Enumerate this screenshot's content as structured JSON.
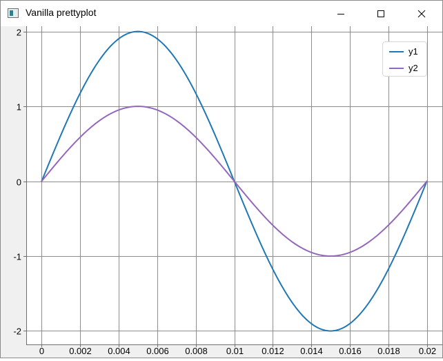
{
  "window": {
    "title": "Vanilla prettyplot",
    "controls": {
      "minimize_icon": "minimize-icon",
      "maximize_icon": "maximize-icon",
      "close_icon": "close-icon"
    }
  },
  "chart_data": {
    "type": "line",
    "title": "",
    "xlabel": "",
    "ylabel": "",
    "xlim": [
      -0.0008,
      0.0208
    ],
    "ylim": [
      -2.18,
      2.07
    ],
    "xticks": [
      0,
      0.002,
      0.004,
      0.006,
      0.008,
      0.01,
      0.012,
      0.014,
      0.016,
      0.018,
      0.02
    ],
    "xtick_labels": [
      "0",
      "0.002",
      "0.004",
      "0.006",
      "0.008",
      "0.01",
      "0.012",
      "0.014",
      "0.016",
      "0.018",
      "0.02"
    ],
    "yticks": [
      2,
      1,
      0,
      -1,
      -2
    ],
    "ytick_labels": [
      "2",
      "1",
      "0",
      "-1",
      "-2"
    ],
    "grid": true,
    "legend_position": "top-right",
    "x": [
      0,
      0.001,
      0.002,
      0.003,
      0.004,
      0.005,
      0.006,
      0.007,
      0.008,
      0.009,
      0.01,
      0.011,
      0.012,
      0.013,
      0.014,
      0.015,
      0.016,
      0.017,
      0.018,
      0.019,
      0.02
    ],
    "series": [
      {
        "name": "y1",
        "color": "#1f77b4",
        "values": [
          0,
          0.618,
          1.176,
          1.618,
          1.902,
          2,
          1.902,
          1.618,
          1.176,
          0.618,
          0,
          -0.618,
          -1.176,
          -1.618,
          -1.902,
          -2,
          -1.902,
          -1.618,
          -1.176,
          -0.618,
          0
        ]
      },
      {
        "name": "y2",
        "color": "#9467bd",
        "values": [
          0,
          0.309,
          0.588,
          0.809,
          0.951,
          1,
          0.951,
          0.809,
          0.588,
          0.309,
          0,
          -0.309,
          -0.588,
          -0.809,
          -0.951,
          -1,
          -0.951,
          -0.809,
          -0.588,
          -0.309,
          0
        ]
      }
    ]
  }
}
